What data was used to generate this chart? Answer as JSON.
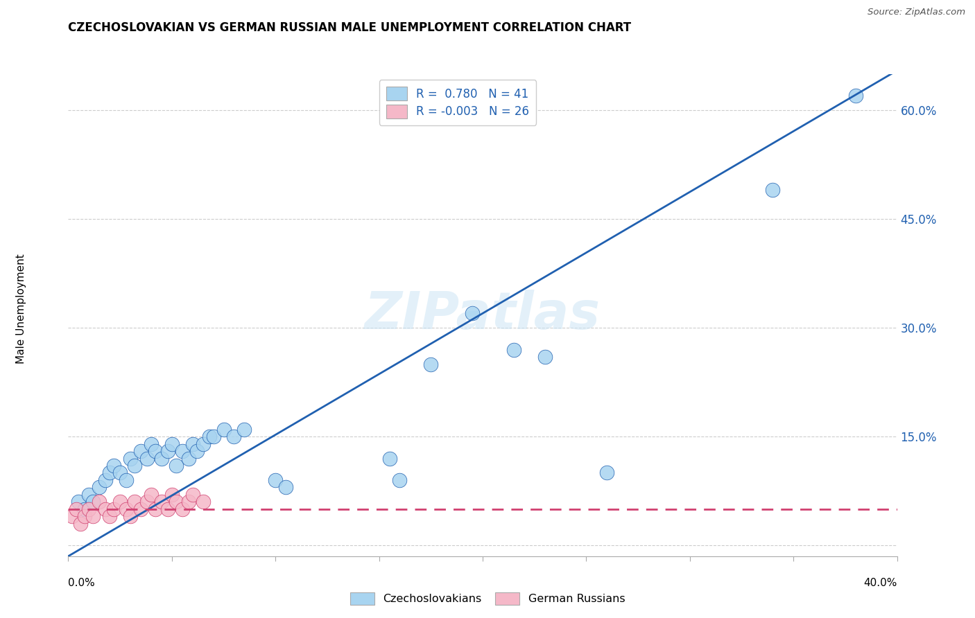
{
  "title": "CZECHOSLOVAKIAN VS GERMAN RUSSIAN MALE UNEMPLOYMENT CORRELATION CHART",
  "source": "Source: ZipAtlas.com",
  "ylabel": "Male Unemployment",
  "xmin": 0.0,
  "xmax": 0.4,
  "ymin": -0.015,
  "ymax": 0.65,
  "yticks": [
    0.0,
    0.15,
    0.3,
    0.45,
    0.6
  ],
  "ytick_labels": [
    "",
    "15.0%",
    "30.0%",
    "45.0%",
    "60.0%"
  ],
  "xticks": [
    0.0,
    0.05,
    0.1,
    0.15,
    0.2,
    0.25,
    0.3,
    0.35,
    0.4
  ],
  "watermark": "ZIPatlas",
  "legend_r1": "R =  0.780   N = 41",
  "legend_r2": "R = -0.003   N = 26",
  "color_blue": "#a8d4f0",
  "color_pink": "#f5b8c8",
  "color_blue_line": "#2060b0",
  "color_pink_line": "#d04070",
  "color_blue_text": "#2060b0",
  "czechoslovakians": [
    [
      0.005,
      0.06
    ],
    [
      0.008,
      0.05
    ],
    [
      0.01,
      0.07
    ],
    [
      0.012,
      0.06
    ],
    [
      0.015,
      0.08
    ],
    [
      0.018,
      0.09
    ],
    [
      0.02,
      0.1
    ],
    [
      0.022,
      0.11
    ],
    [
      0.025,
      0.1
    ],
    [
      0.028,
      0.09
    ],
    [
      0.03,
      0.12
    ],
    [
      0.032,
      0.11
    ],
    [
      0.035,
      0.13
    ],
    [
      0.038,
      0.12
    ],
    [
      0.04,
      0.14
    ],
    [
      0.042,
      0.13
    ],
    [
      0.045,
      0.12
    ],
    [
      0.048,
      0.13
    ],
    [
      0.05,
      0.14
    ],
    [
      0.052,
      0.11
    ],
    [
      0.055,
      0.13
    ],
    [
      0.058,
      0.12
    ],
    [
      0.06,
      0.14
    ],
    [
      0.062,
      0.13
    ],
    [
      0.065,
      0.14
    ],
    [
      0.068,
      0.15
    ],
    [
      0.07,
      0.15
    ],
    [
      0.075,
      0.16
    ],
    [
      0.08,
      0.15
    ],
    [
      0.085,
      0.16
    ],
    [
      0.1,
      0.09
    ],
    [
      0.105,
      0.08
    ],
    [
      0.155,
      0.12
    ],
    [
      0.16,
      0.09
    ],
    [
      0.175,
      0.25
    ],
    [
      0.195,
      0.32
    ],
    [
      0.215,
      0.27
    ],
    [
      0.23,
      0.26
    ],
    [
      0.26,
      0.1
    ],
    [
      0.34,
      0.49
    ],
    [
      0.38,
      0.62
    ]
  ],
  "german_russians": [
    [
      0.002,
      0.04
    ],
    [
      0.004,
      0.05
    ],
    [
      0.006,
      0.03
    ],
    [
      0.008,
      0.04
    ],
    [
      0.01,
      0.05
    ],
    [
      0.012,
      0.04
    ],
    [
      0.015,
      0.06
    ],
    [
      0.018,
      0.05
    ],
    [
      0.02,
      0.04
    ],
    [
      0.022,
      0.05
    ],
    [
      0.025,
      0.06
    ],
    [
      0.028,
      0.05
    ],
    [
      0.03,
      0.04
    ],
    [
      0.032,
      0.06
    ],
    [
      0.035,
      0.05
    ],
    [
      0.038,
      0.06
    ],
    [
      0.04,
      0.07
    ],
    [
      0.042,
      0.05
    ],
    [
      0.045,
      0.06
    ],
    [
      0.048,
      0.05
    ],
    [
      0.05,
      0.07
    ],
    [
      0.052,
      0.06
    ],
    [
      0.055,
      0.05
    ],
    [
      0.058,
      0.06
    ],
    [
      0.06,
      0.07
    ],
    [
      0.065,
      0.06
    ]
  ],
  "blue_line_x": [
    0.0,
    0.4
  ],
  "blue_line_y": [
    -0.015,
    0.655
  ],
  "pink_line_x": [
    0.0,
    0.4
  ],
  "pink_line_y": [
    0.05,
    0.05
  ]
}
